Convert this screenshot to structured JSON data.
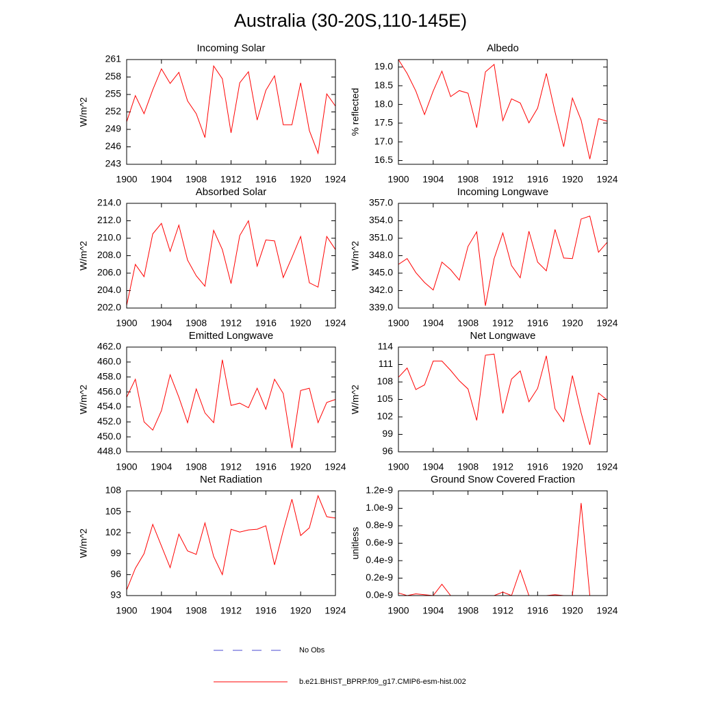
{
  "title": "Australia (30-20S,110-145E)",
  "legend": [
    {
      "name": "No Obs",
      "color": "#4a4ad0",
      "dashed": true
    },
    {
      "name": "b.e21.BHIST_BPRP.f09_g17.CMIP6-esm-hist.002",
      "color": "#ff0000",
      "dashed": false
    }
  ],
  "chart_data": [
    {
      "type": "line",
      "title": "Incoming Solar",
      "ylabel": "W/m^2",
      "color": "#ff0000",
      "x": [
        1900,
        1901,
        1902,
        1903,
        1904,
        1905,
        1906,
        1907,
        1908,
        1909,
        1910,
        1911,
        1912,
        1913,
        1914,
        1915,
        1916,
        1917,
        1918,
        1919,
        1920,
        1921,
        1922,
        1923,
        1924
      ],
      "values": [
        250.3,
        254.8,
        251.7,
        255.8,
        259.4,
        256.9,
        258.8,
        253.9,
        251.7,
        247.6,
        259.9,
        257.7,
        248.4,
        257.0,
        258.9,
        250.6,
        255.7,
        258.2,
        249.8,
        249.8,
        257.0,
        248.8,
        244.9,
        255.1,
        253.0
      ],
      "xlim": [
        1900,
        1924
      ],
      "xticks": [
        1900,
        1904,
        1908,
        1912,
        1916,
        1920,
        1924
      ],
      "ylim": [
        243,
        261
      ],
      "yticks": [
        243,
        246,
        249,
        252,
        255,
        258,
        261
      ]
    },
    {
      "type": "line",
      "title": "Albedo",
      "ylabel": "% reflected",
      "color": "#ff0000",
      "x": [
        1900,
        1901,
        1902,
        1903,
        1904,
        1905,
        1906,
        1907,
        1908,
        1909,
        1910,
        1911,
        1912,
        1913,
        1914,
        1915,
        1916,
        1917,
        1918,
        1919,
        1920,
        1921,
        1922,
        1923,
        1924
      ],
      "values": [
        19.2,
        18.83,
        18.36,
        17.73,
        18.36,
        18.89,
        18.21,
        18.37,
        18.3,
        17.38,
        18.87,
        19.07,
        17.57,
        18.15,
        18.04,
        17.51,
        17.9,
        18.83,
        17.8,
        16.87,
        18.17,
        17.58,
        16.54,
        17.62,
        17.55
      ],
      "xlim": [
        1900,
        1924
      ],
      "xticks": [
        1900,
        1904,
        1908,
        1912,
        1916,
        1920,
        1924
      ],
      "ylim": [
        16.4,
        19.2
      ],
      "yticks": [
        16.5,
        {
          "value": 17,
          "label": "17.0"
        },
        17.5,
        {
          "value": 18,
          "label": "18.0"
        },
        18.5,
        {
          "value": 19,
          "label": "19.0"
        }
      ]
    },
    {
      "type": "line",
      "title": "Absorbed Solar",
      "ylabel": "W/m^2",
      "color": "#ff0000",
      "x": [
        1900,
        1901,
        1902,
        1903,
        1904,
        1905,
        1906,
        1907,
        1908,
        1909,
        1910,
        1911,
        1912,
        1913,
        1914,
        1915,
        1916,
        1917,
        1918,
        1919,
        1920,
        1921,
        1922,
        1923,
        1924
      ],
      "values": [
        202.3,
        207.0,
        205.6,
        210.5,
        211.7,
        208.5,
        211.5,
        207.5,
        205.7,
        204.5,
        210.9,
        208.7,
        204.8,
        210.3,
        212.0,
        206.8,
        209.8,
        209.7,
        205.5,
        207.8,
        210.2,
        204.9,
        204.4,
        210.2,
        208.7
      ],
      "xlim": [
        1900,
        1924
      ],
      "xticks": [
        1900,
        1904,
        1908,
        1912,
        1916,
        1920,
        1924
      ],
      "ylim": [
        202,
        214
      ],
      "yticks": [
        {
          "value": 202,
          "label": "202.0"
        },
        {
          "value": 204,
          "label": "204.0"
        },
        {
          "value": 206,
          "label": "206.0"
        },
        {
          "value": 208,
          "label": "208.0"
        },
        {
          "value": 210,
          "label": "210.0"
        },
        {
          "value": 212,
          "label": "212.0"
        },
        {
          "value": 214,
          "label": "214.0"
        }
      ]
    },
    {
      "type": "line",
      "title": "Incoming Longwave",
      "ylabel": "W/m^2",
      "color": "#ff0000",
      "x": [
        1900,
        1901,
        1902,
        1903,
        1904,
        1905,
        1906,
        1907,
        1908,
        1909,
        1910,
        1911,
        1912,
        1913,
        1914,
        1915,
        1916,
        1917,
        1918,
        1919,
        1920,
        1921,
        1922,
        1923,
        1924
      ],
      "values": [
        346.5,
        347.5,
        345.1,
        343.4,
        342.1,
        346.9,
        345.6,
        343.8,
        349.6,
        352.1,
        339.4,
        347.5,
        351.9,
        346.3,
        344.2,
        352.2,
        346.9,
        345.4,
        352.5,
        347.6,
        347.5,
        354.3,
        354.8,
        348.6,
        350.3
      ],
      "xlim": [
        1900,
        1924
      ],
      "xticks": [
        1900,
        1904,
        1908,
        1912,
        1916,
        1920,
        1924
      ],
      "ylim": [
        339,
        357
      ],
      "yticks": [
        {
          "value": 339,
          "label": "339.0"
        },
        {
          "value": 342,
          "label": "342.0"
        },
        {
          "value": 345,
          "label": "345.0"
        },
        {
          "value": 348,
          "label": "348.0"
        },
        {
          "value": 351,
          "label": "351.0"
        },
        {
          "value": 354,
          "label": "354.0"
        },
        {
          "value": 357,
          "label": "357.0"
        }
      ]
    },
    {
      "type": "line",
      "title": "Emitted Longwave",
      "ylabel": "W/m^2",
      "color": "#ff0000",
      "x": [
        1900,
        1901,
        1902,
        1903,
        1904,
        1905,
        1906,
        1907,
        1908,
        1909,
        1910,
        1911,
        1912,
        1913,
        1914,
        1915,
        1916,
        1917,
        1918,
        1919,
        1920,
        1921,
        1922,
        1923,
        1924
      ],
      "values": [
        455.3,
        457.7,
        452.0,
        450.9,
        453.5,
        458.3,
        455.3,
        451.9,
        456.4,
        453.2,
        451.9,
        460.3,
        454.2,
        454.5,
        453.9,
        456.5,
        453.7,
        457.7,
        455.8,
        448.5,
        456.2,
        456.5,
        451.9,
        454.6,
        455.0
      ],
      "xlim": [
        1900,
        1924
      ],
      "xticks": [
        1900,
        1904,
        1908,
        1912,
        1916,
        1920,
        1924
      ],
      "ylim": [
        448,
        462
      ],
      "yticks": [
        {
          "value": 448,
          "label": "448.0"
        },
        {
          "value": 450,
          "label": "450.0"
        },
        {
          "value": 452,
          "label": "452.0"
        },
        {
          "value": 454,
          "label": "454.0"
        },
        {
          "value": 456,
          "label": "456.0"
        },
        {
          "value": 458,
          "label": "458.0"
        },
        {
          "value": 460,
          "label": "460.0"
        },
        {
          "value": 462,
          "label": "462.0"
        }
      ]
    },
    {
      "type": "line",
      "title": "Net Longwave",
      "ylabel": "W/m^2",
      "color": "#ff0000",
      "x": [
        1900,
        1901,
        1902,
        1903,
        1904,
        1905,
        1906,
        1907,
        1908,
        1909,
        1910,
        1911,
        1912,
        1913,
        1914,
        1915,
        1916,
        1917,
        1918,
        1919,
        1920,
        1921,
        1922,
        1923,
        1924
      ],
      "values": [
        108.8,
        110.4,
        106.7,
        107.5,
        111.6,
        111.6,
        110.0,
        108.2,
        106.8,
        101.4,
        112.6,
        112.8,
        102.6,
        108.5,
        109.9,
        104.6,
        106.9,
        112.5,
        103.4,
        101.2,
        109.1,
        102.7,
        97.2,
        106.1,
        104.9
      ],
      "xlim": [
        1900,
        1924
      ],
      "xticks": [
        1900,
        1904,
        1908,
        1912,
        1916,
        1920,
        1924
      ],
      "ylim": [
        96,
        114
      ],
      "yticks": [
        96,
        99,
        102,
        105,
        108,
        111,
        114
      ]
    },
    {
      "type": "line",
      "title": "Net Radiation",
      "ylabel": "W/m^2",
      "color": "#ff0000",
      "x": [
        1900,
        1901,
        1902,
        1903,
        1904,
        1905,
        1906,
        1907,
        1908,
        1909,
        1910,
        1911,
        1912,
        1913,
        1914,
        1915,
        1916,
        1917,
        1918,
        1919,
        1920,
        1921,
        1922,
        1923,
        1924
      ],
      "values": [
        93.8,
        96.9,
        99.0,
        103.2,
        100.1,
        97.0,
        101.8,
        99.4,
        98.9,
        103.4,
        98.6,
        96.0,
        102.5,
        102.1,
        102.4,
        102.5,
        103.0,
        97.4,
        102.3,
        106.8,
        101.6,
        102.7,
        107.3,
        104.3,
        104.1
      ],
      "xlim": [
        1900,
        1924
      ],
      "xticks": [
        1900,
        1904,
        1908,
        1912,
        1916,
        1920,
        1924
      ],
      "ylim": [
        93,
        108
      ],
      "yticks": [
        93,
        96,
        99,
        102,
        105,
        108
      ]
    },
    {
      "type": "line",
      "title": "Ground Snow Covered Fraction",
      "ylabel": "unitless",
      "color": "#ff0000",
      "x": [
        1900,
        1901,
        1902,
        1903,
        1904,
        1905,
        1906,
        1907,
        1908,
        1909,
        1910,
        1911,
        1912,
        1913,
        1914,
        1915,
        1916,
        1917,
        1918,
        1919,
        1920,
        1921,
        1922,
        1923,
        1924
      ],
      "values": [
        3e-11,
        0,
        2e-11,
        1e-11,
        0,
        1.3e-10,
        0,
        0,
        0,
        0,
        0,
        0,
        4e-11,
        0,
        2.9e-10,
        0,
        0,
        0,
        1e-11,
        0,
        0,
        1.06e-09,
        0,
        0,
        0
      ],
      "xlim": [
        1900,
        1924
      ],
      "xticks": [
        1900,
        1904,
        1908,
        1912,
        1916,
        1920,
        1924
      ],
      "ylim": [
        0,
        1.2e-09
      ],
      "yticks": [
        {
          "value": 0,
          "label": "0.0e-9"
        },
        {
          "value": 2e-10,
          "label": "0.2e-9"
        },
        {
          "value": 4e-10,
          "label": "0.4e-9"
        },
        {
          "value": 6e-10,
          "label": "0.6e-9"
        },
        {
          "value": 8e-10,
          "label": "0.8e-9"
        },
        {
          "value": 1e-09,
          "label": "1.0e-9"
        },
        {
          "value": 1.2e-09,
          "label": "1.2e-9"
        }
      ]
    }
  ]
}
